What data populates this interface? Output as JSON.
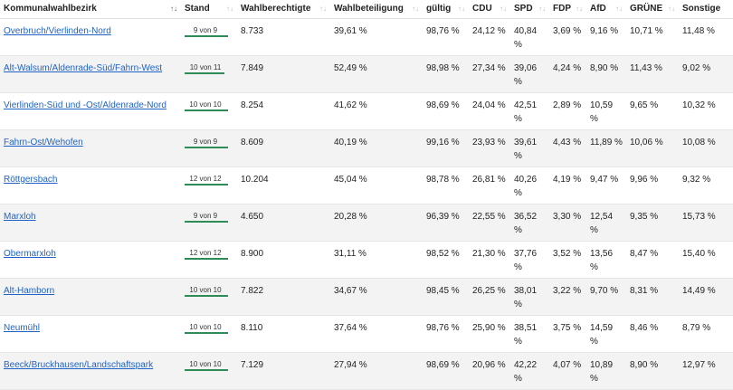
{
  "table": {
    "headers": [
      {
        "label": "Kommunalwahlbezirk",
        "sort": "↑↓",
        "active": true
      },
      {
        "label": "Stand",
        "sort": "↑↓"
      },
      {
        "label": "Wahlberechtigte",
        "sort": "↑↓"
      },
      {
        "label": "Wahlbeteiligung",
        "sort": "↑↓"
      },
      {
        "label": "gültig",
        "sort": "↑↓"
      },
      {
        "label": "CDU",
        "sort": "↑↓"
      },
      {
        "label": "SPD",
        "sort": "↑↓"
      },
      {
        "label": "FDP",
        "sort": "↑↓"
      },
      {
        "label": "AfD",
        "sort": "↑↓"
      },
      {
        "label": "GRÜNE",
        "sort": "↑↓"
      },
      {
        "label": "Sonstige",
        "sort": "↑↓"
      }
    ],
    "rows": [
      {
        "name": "Overbruch/Vierlinden-Nord",
        "stand": "9 von 9",
        "progress": 1.0,
        "wahlberechtigte": "8.733",
        "beteiligung": "39,61 %",
        "gueltig": "98,76 %",
        "cdu": "24,12 %",
        "spd": "40,84 %",
        "fdp": "3,69 %",
        "afd": "9,16 %",
        "gruene": "10,71 %",
        "sonstige": "11,48 %"
      },
      {
        "name": "Alt-Walsum/Aldenrade-Süd/Fahrn-West",
        "stand": "10 von 11",
        "progress": 0.91,
        "wahlberechtigte": "7.849",
        "beteiligung": "52,49 %",
        "gueltig": "98,98 %",
        "cdu": "27,34 %",
        "spd": "39,06 %",
        "fdp": "4,24 %",
        "afd": "8,90 %",
        "gruene": "11,43 %",
        "sonstige": "9,02 %"
      },
      {
        "name": "Vierlinden-Süd und -Ost/Aldenrade-Nord",
        "stand": "10 von 10",
        "progress": 1.0,
        "wahlberechtigte": "8.254",
        "beteiligung": "41,62 %",
        "gueltig": "98,69 %",
        "cdu": "24,04 %",
        "spd": "42,51 %",
        "fdp": "2,89 %",
        "afd": "10,59 %",
        "gruene": "9,65 %",
        "sonstige": "10,32 %"
      },
      {
        "name": "Fahrn-Ost/Wehofen",
        "stand": "9 von 9",
        "progress": 1.0,
        "wahlberechtigte": "8.609",
        "beteiligung": "40,19 %",
        "gueltig": "99,16 %",
        "cdu": "23,93 %",
        "spd": "39,61 %",
        "fdp": "4,43 %",
        "afd": "11,89 %",
        "gruene": "10,06 %",
        "sonstige": "10,08 %"
      },
      {
        "name": "Röttgersbach",
        "stand": "12 von 12",
        "progress": 1.0,
        "wahlberechtigte": "10.204",
        "beteiligung": "45,04 %",
        "gueltig": "98,78 %",
        "cdu": "26,81 %",
        "spd": "40,26 %",
        "fdp": "4,19 %",
        "afd": "9,47 %",
        "gruene": "9,96 %",
        "sonstige": "9,32 %"
      },
      {
        "name": "Marxloh",
        "stand": "9 von 9",
        "progress": 1.0,
        "wahlberechtigte": "4.650",
        "beteiligung": "20,28 %",
        "gueltig": "96,39 %",
        "cdu": "22,55 %",
        "spd": "36,52 %",
        "fdp": "3,30 %",
        "afd": "12,54 %",
        "gruene": "9,35 %",
        "sonstige": "15,73 %"
      },
      {
        "name": "Obermarxloh",
        "stand": "12 von 12",
        "progress": 1.0,
        "wahlberechtigte": "8.900",
        "beteiligung": "31,11 %",
        "gueltig": "98,52 %",
        "cdu": "21,30 %",
        "spd": "37,76 %",
        "fdp": "3,52 %",
        "afd": "13,56 %",
        "gruene": "8,47 %",
        "sonstige": "15,40 %"
      },
      {
        "name": "Alt-Hamborn",
        "stand": "10 von 10",
        "progress": 1.0,
        "wahlberechtigte": "7.822",
        "beteiligung": "34,67 %",
        "gueltig": "98,45 %",
        "cdu": "26,25 %",
        "spd": "38,01 %",
        "fdp": "3,22 %",
        "afd": "9,70 %",
        "gruene": "8,31 %",
        "sonstige": "14,49 %"
      },
      {
        "name": "Neumühl",
        "stand": "10 von 10",
        "progress": 1.0,
        "wahlberechtigte": "8.110",
        "beteiligung": "37,64 %",
        "gueltig": "98,76 %",
        "cdu": "25,90 %",
        "spd": "38,51 %",
        "fdp": "3,75 %",
        "afd": "14,59 %",
        "gruene": "8,46 %",
        "sonstige": "8,79 %"
      },
      {
        "name": "Beeck/Bruckhausen/Landschaftspark",
        "stand": "10 von 10",
        "progress": 1.0,
        "wahlberechtigte": "7.129",
        "beteiligung": "27,94 %",
        "gueltig": "98,69 %",
        "cdu": "20,96 %",
        "spd": "42,22 %",
        "fdp": "4,07 %",
        "afd": "10,89 %",
        "gruene": "8,90 %",
        "sonstige": "12,97 %"
      }
    ]
  },
  "colors": {
    "link": "#1f63c6",
    "progress": "#2e8b57",
    "stripe": "#f3f3f3"
  }
}
